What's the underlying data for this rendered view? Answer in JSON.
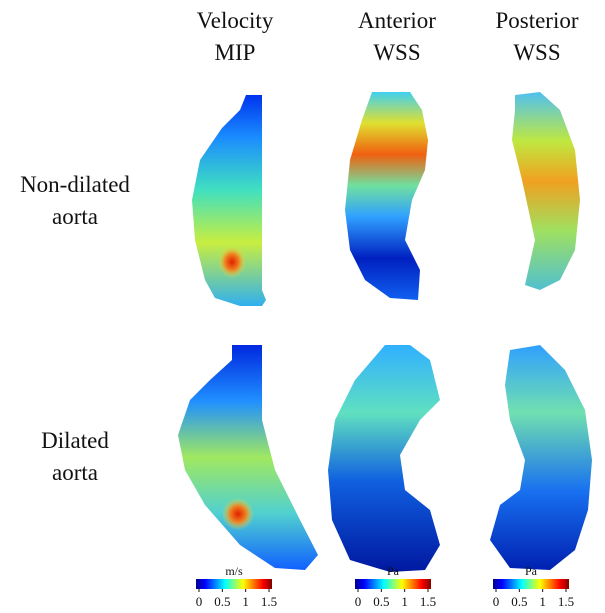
{
  "columns": [
    {
      "line1": "Velocity",
      "line2": "MIP"
    },
    {
      "line1": "Anterior",
      "line2": "WSS"
    },
    {
      "line1": "Posterior",
      "line2": "WSS"
    }
  ],
  "rows": [
    {
      "line1": "Non-dilated",
      "line2": "aorta"
    },
    {
      "line1": "Dilated",
      "line2": "aorta"
    }
  ],
  "colorbars": [
    {
      "unit": "m/s",
      "ticks": [
        0,
        0.5,
        1,
        1.5
      ]
    },
    {
      "unit": "Pa",
      "ticks": [
        0,
        0.5,
        1,
        1.5
      ]
    },
    {
      "unit": "Pa",
      "ticks": [
        0,
        0.5,
        1,
        1.5
      ]
    }
  ]
}
